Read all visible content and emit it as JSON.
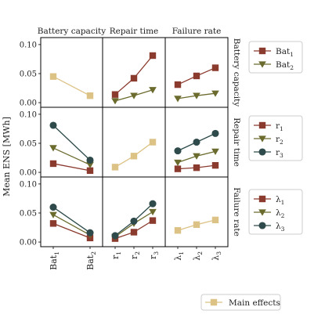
{
  "chart_data": {
    "type": "line",
    "ylabel": "Mean ENS [MWh]",
    "ylim": [
      -0.008,
      0.112
    ],
    "yticks": [
      0.0,
      0.05,
      0.1
    ],
    "ytick_labels": [
      "0.00",
      "0.05",
      "0.10"
    ],
    "columns": [
      {
        "title": "Battery capacity",
        "x_labels": [
          "Bat",
          "Bat"
        ],
        "x_subs": [
          "1",
          "2"
        ]
      },
      {
        "title": "Repair time",
        "x_labels": [
          "r",
          "r",
          "r"
        ],
        "x_subs": [
          "1",
          "2",
          "3"
        ]
      },
      {
        "title": "Failure rate",
        "x_labels": [
          "λ",
          "λ",
          "λ"
        ],
        "x_subs": [
          "1",
          "2",
          "3"
        ]
      }
    ],
    "rows": [
      {
        "title": "Battery capacity",
        "legend": [
          {
            "label": "Bat",
            "sub": "1",
            "marker": "square",
            "color": "#8b3a2e"
          },
          {
            "label": "Bat",
            "sub": "2",
            "marker": "triangle-down",
            "color": "#6b6b2e"
          }
        ],
        "panels": [
          [
            {
              "marker": "square",
              "color": "#dcc285",
              "values": [
                0.045,
                0.012
              ]
            }
          ],
          [
            {
              "marker": "square",
              "color": "#8b3a2e",
              "values": [
                0.014,
                0.042,
                0.081
              ]
            },
            {
              "marker": "triangle-down",
              "color": "#6b6b2e",
              "values": [
                0.003,
                0.012,
                0.022
              ]
            }
          ],
          [
            {
              "marker": "square",
              "color": "#8b3a2e",
              "values": [
                0.031,
                0.046,
                0.06
              ]
            },
            {
              "marker": "triangle-down",
              "color": "#6b6b2e",
              "values": [
                0.007,
                0.012,
                0.016
              ]
            }
          ]
        ]
      },
      {
        "title": "Repair time",
        "legend": [
          {
            "label": "r",
            "sub": "1",
            "marker": "square",
            "color": "#8b3a2e"
          },
          {
            "label": "r",
            "sub": "2",
            "marker": "triangle-down",
            "color": "#6b6b2e"
          },
          {
            "label": "r",
            "sub": "3",
            "marker": "circle",
            "color": "#2e4a4a"
          }
        ],
        "panels": [
          [
            {
              "marker": "square",
              "color": "#8b3a2e",
              "values": [
                0.015,
                0.003
              ]
            },
            {
              "marker": "triangle-down",
              "color": "#6b6b2e",
              "values": [
                0.042,
                0.013
              ]
            },
            {
              "marker": "circle",
              "color": "#2e4a4a",
              "values": [
                0.081,
                0.021
              ]
            }
          ],
          [
            {
              "marker": "square",
              "color": "#dcc285",
              "values": [
                0.009,
                0.028,
                0.052
              ]
            }
          ],
          [
            {
              "marker": "square",
              "color": "#8b3a2e",
              "values": [
                0.006,
                0.008,
                0.012
              ]
            },
            {
              "marker": "triangle-down",
              "color": "#6b6b2e",
              "values": [
                0.017,
                0.028,
                0.036
              ]
            },
            {
              "marker": "circle",
              "color": "#2e4a4a",
              "values": [
                0.037,
                0.052,
                0.067
              ]
            }
          ]
        ]
      },
      {
        "title": "Failure rate",
        "legend": [
          {
            "label": "λ",
            "sub": "1",
            "marker": "square",
            "color": "#8b3a2e"
          },
          {
            "label": "λ",
            "sub": "2",
            "marker": "triangle-down",
            "color": "#6b6b2e"
          },
          {
            "label": "λ",
            "sub": "3",
            "marker": "circle",
            "color": "#2e4a4a"
          }
        ],
        "panels": [
          [
            {
              "marker": "square",
              "color": "#8b3a2e",
              "values": [
                0.032,
                0.007
              ]
            },
            {
              "marker": "triangle-down",
              "color": "#6b6b2e",
              "values": [
                0.047,
                0.012
              ]
            },
            {
              "marker": "circle",
              "color": "#2e4a4a",
              "values": [
                0.06,
                0.016
              ]
            }
          ],
          [
            {
              "marker": "square",
              "color": "#8b3a2e",
              "values": [
                0.006,
                0.017,
                0.037
              ]
            },
            {
              "marker": "triangle-down",
              "color": "#6b6b2e",
              "values": [
                0.009,
                0.032,
                0.052
              ]
            },
            {
              "marker": "circle",
              "color": "#2e4a4a",
              "values": [
                0.011,
                0.036,
                0.066
              ]
            }
          ],
          [
            {
              "marker": "square",
              "color": "#dcc285",
              "values": [
                0.02,
                0.03,
                0.038
              ]
            }
          ]
        ]
      }
    ],
    "main_effects_legend": {
      "label": "Main effects",
      "marker": "square",
      "color": "#dcc285"
    }
  }
}
